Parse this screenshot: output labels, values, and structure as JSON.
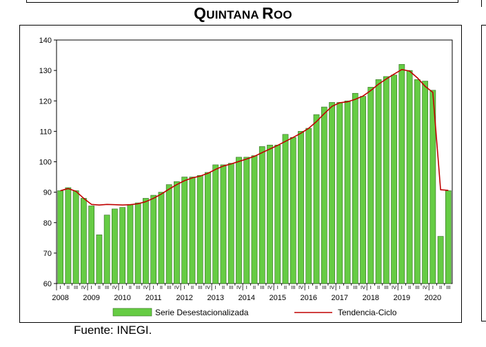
{
  "page": {
    "title_first": "Q",
    "title_rest1": "UINTANA ",
    "title_second": "R",
    "title_rest2": "OO",
    "source": "Fuente: INEGI."
  },
  "chart_data": {
    "type": "bar",
    "title": "Quintana Roo",
    "ylim": [
      60,
      140
    ],
    "yticks": [
      60,
      70,
      80,
      90,
      100,
      110,
      120,
      130,
      140
    ],
    "years": [
      "2008",
      "2009",
      "2010",
      "2011",
      "2012",
      "2013",
      "2014",
      "2015",
      "2016",
      "2017",
      "2018",
      "2019",
      "2020"
    ],
    "quarter_labels": [
      "I",
      "II",
      "III",
      "IV"
    ],
    "grid": false,
    "legend_position": "bottom",
    "series": [
      {
        "name": "Serie Desestacionalizada",
        "kind": "bar",
        "color": "#66cc44",
        "values": [
          90.5,
          91.5,
          90.5,
          88.0,
          85.5,
          76.0,
          82.5,
          84.5,
          85.0,
          86.0,
          86.5,
          88.0,
          89.0,
          90.0,
          92.5,
          93.5,
          95.0,
          95.0,
          95.5,
          96.5,
          99.0,
          99.0,
          99.5,
          101.5,
          101.5,
          102.0,
          105.0,
          105.5,
          105.5,
          109.0,
          108.0,
          110.0,
          111.0,
          115.5,
          118.0,
          119.5,
          119.5,
          120.0,
          122.5,
          121.5,
          124.5,
          127.0,
          128.0,
          128.5,
          132.0,
          130.0,
          127.0,
          126.5,
          123.5,
          75.5,
          90.5
        ]
      },
      {
        "name": "Tendencia-Ciclo",
        "kind": "line",
        "color": "#c00000",
        "values": [
          90.5,
          91.2,
          90.3,
          88.0,
          86.0,
          85.8,
          86.0,
          85.9,
          85.8,
          85.9,
          86.2,
          86.9,
          88.0,
          89.4,
          91.0,
          92.5,
          93.8,
          94.7,
          95.3,
          96.2,
          97.5,
          98.6,
          99.3,
          100.1,
          100.9,
          101.8,
          103.0,
          104.2,
          105.4,
          106.7,
          108.0,
          109.4,
          111.0,
          113.2,
          115.8,
          118.2,
          119.4,
          119.7,
          120.5,
          121.6,
          123.4,
          125.5,
          127.2,
          128.8,
          130.3,
          129.8,
          127.6,
          124.8,
          122.8,
          90.8,
          90.6
        ]
      }
    ]
  }
}
